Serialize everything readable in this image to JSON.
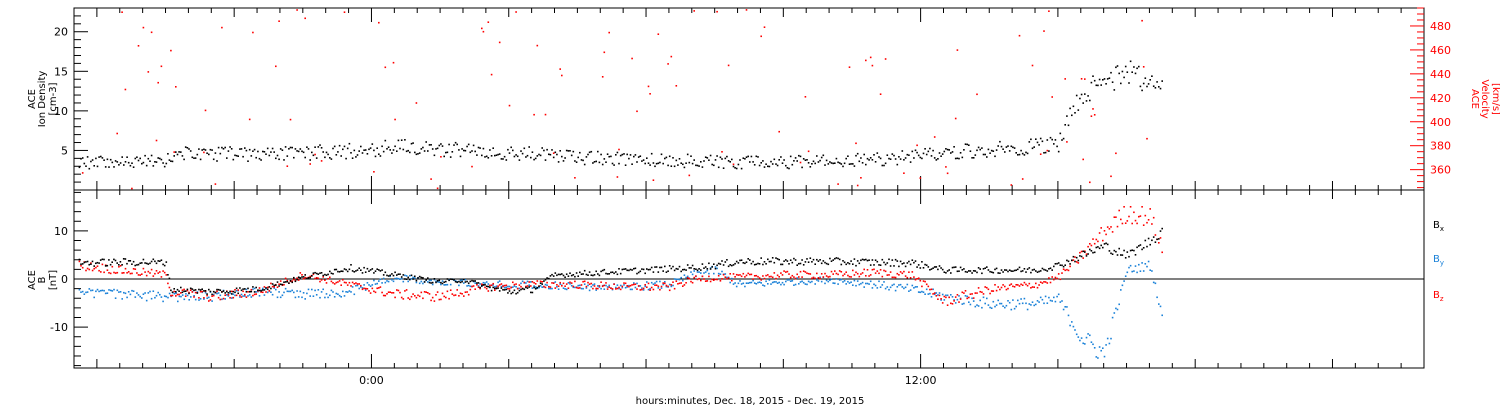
{
  "chart_data": [
    {
      "type": "scatter",
      "panel": "top",
      "ylabel_left": [
        "ACE",
        "Ion Density",
        "[cm-3]"
      ],
      "ylabel_right": [
        "ACE",
        "Velocity",
        "[km/s]"
      ],
      "left_ticks": [
        "5",
        "10",
        "15",
        "20"
      ],
      "right_ticks": [
        "360",
        "380",
        "400",
        "420",
        "440",
        "460",
        "480"
      ],
      "ylim_left": [
        0,
        23
      ],
      "ylim_right": [
        343,
        495
      ],
      "xlim_hours": [
        -6.5,
        23.0
      ],
      "x_ticks": [
        "0:00",
        "12:00"
      ],
      "series": [
        {
          "color": "#000000",
          "axis": "left",
          "points": [
            [
              -6.4,
              3.6
            ],
            [
              -5.5,
              3.5
            ],
            [
              -4.5,
              3.8
            ],
            [
              -4.4,
              4.6
            ],
            [
              -3.5,
              4.7
            ],
            [
              -2.5,
              4.5
            ],
            [
              -1.5,
              4.8
            ],
            [
              -0.5,
              5.0
            ],
            [
              0.5,
              5.5
            ],
            [
              1.5,
              5.3
            ],
            [
              2.5,
              5.0
            ],
            [
              3.5,
              4.6
            ],
            [
              4.5,
              4.2
            ],
            [
              5.5,
              4.0
            ],
            [
              6.5,
              3.9
            ],
            [
              7.0,
              3.7
            ],
            [
              7.5,
              3.6
            ],
            [
              8.0,
              3.6
            ],
            [
              9.0,
              3.6
            ],
            [
              10.0,
              3.7
            ],
            [
              11.0,
              3.9
            ],
            [
              11.8,
              4.4
            ],
            [
              12.5,
              4.8
            ],
            [
              13.5,
              5.2
            ],
            [
              14.5,
              5.6
            ],
            [
              15.0,
              6.0
            ],
            [
              15.5,
              12.5
            ],
            [
              16.0,
              13.5
            ],
            [
              16.5,
              15.0
            ],
            [
              17.0,
              14.0
            ],
            [
              17.3,
              13.0
            ]
          ]
        },
        {
          "color": "#ff0000",
          "axis": "right",
          "points": [
            [
              -6.4,
              400
            ],
            [
              -5.0,
              402
            ],
            [
              -4.5,
              400
            ],
            [
              -4.4,
              422
            ],
            [
              -3.5,
              424
            ],
            [
              -2.5,
              418
            ],
            [
              -2.0,
              412
            ],
            [
              -1.0,
              410
            ],
            [
              0.0,
              405
            ],
            [
              1.0,
              404
            ],
            [
              2.0,
              400
            ],
            [
              3.0,
              396
            ],
            [
              4.0,
              390
            ],
            [
              5.0,
              380
            ],
            [
              6.0,
              377
            ],
            [
              7.0,
              375
            ],
            [
              7.5,
              374
            ],
            [
              8.0,
              360
            ],
            [
              9.0,
              356
            ],
            [
              10.0,
              354
            ],
            [
              11.0,
              356
            ],
            [
              11.8,
              359
            ],
            [
              12.5,
              372
            ],
            [
              13.0,
              368
            ],
            [
              14.0,
              366
            ],
            [
              14.5,
              362
            ],
            [
              15.0,
              360
            ],
            [
              15.5,
              470
            ],
            [
              16.0,
              480
            ],
            [
              16.5,
              470
            ],
            [
              17.0,
              460
            ],
            [
              17.3,
              450
            ]
          ]
        }
      ]
    },
    {
      "type": "scatter",
      "panel": "bottom",
      "ylabel_left": [
        "ACE",
        "B",
        "[nT]"
      ],
      "left_ticks": [
        "-10",
        "0",
        "10"
      ],
      "ylim": [
        -18.5,
        18.5
      ],
      "xlim_hours": [
        -6.5,
        23.0
      ],
      "x_ticks": [
        "0:00",
        "12:00"
      ],
      "legend": [
        {
          "name": "B",
          "sub": "x",
          "color": "#000000"
        },
        {
          "name": "B",
          "sub": "y",
          "color": "#1b82d8"
        },
        {
          "name": "B",
          "sub": "z",
          "color": "#ff0000"
        }
      ],
      "series": [
        {
          "name": "Bx",
          "color": "#000000",
          "points": [
            [
              -6.4,
              3.5
            ],
            [
              -5.0,
              3.7
            ],
            [
              -4.5,
              3.5
            ],
            [
              -4.4,
              -2.0
            ],
            [
              -3.5,
              -2.5
            ],
            [
              -2.5,
              -2.0
            ],
            [
              -1.5,
              0.5
            ],
            [
              -0.5,
              2.5
            ],
            [
              0.5,
              1.0
            ],
            [
              1.5,
              -0.5
            ],
            [
              2.0,
              0.0
            ],
            [
              2.5,
              -1.5
            ],
            [
              3.0,
              -2.5
            ],
            [
              3.5,
              -2.0
            ],
            [
              4.0,
              1.0
            ],
            [
              5.0,
              1.5
            ],
            [
              6.0,
              2.0
            ],
            [
              7.0,
              2.5
            ],
            [
              7.5,
              3.0
            ],
            [
              8.0,
              3.8
            ],
            [
              9.0,
              3.8
            ],
            [
              10.0,
              3.8
            ],
            [
              11.0,
              3.6
            ],
            [
              11.8,
              3.5
            ],
            [
              12.5,
              2.0
            ],
            [
              13.5,
              2.0
            ],
            [
              14.5,
              2.0
            ],
            [
              15.0,
              3.0
            ],
            [
              15.5,
              5.0
            ],
            [
              16.0,
              7.0
            ],
            [
              16.5,
              5.0
            ],
            [
              17.0,
              8.0
            ],
            [
              17.3,
              10.5
            ]
          ]
        },
        {
          "name": "By",
          "color": "#1b82d8",
          "points": [
            [
              -6.4,
              -2.5
            ],
            [
              -5.5,
              -3.0
            ],
            [
              -4.5,
              -3.5
            ],
            [
              -3.5,
              -3.5
            ],
            [
              -2.5,
              -2.5
            ],
            [
              -1.5,
              -3.0
            ],
            [
              -0.5,
              -2.5
            ],
            [
              0.5,
              0.5
            ],
            [
              1.5,
              -0.5
            ],
            [
              2.5,
              -1.0
            ],
            [
              3.5,
              -1.0
            ],
            [
              4.5,
              -1.5
            ],
            [
              5.5,
              -1.5
            ],
            [
              6.5,
              -1.0
            ],
            [
              7.0,
              1.0
            ],
            [
              7.5,
              2.0
            ],
            [
              8.0,
              -1.0
            ],
            [
              9.0,
              -0.5
            ],
            [
              10.0,
              0.0
            ],
            [
              11.0,
              -1.0
            ],
            [
              11.8,
              -2.0
            ],
            [
              12.5,
              -3.5
            ],
            [
              13.5,
              -5.0
            ],
            [
              14.5,
              -5.0
            ],
            [
              15.0,
              -4.0
            ],
            [
              15.5,
              -12.0
            ],
            [
              16.0,
              -15.5
            ],
            [
              16.5,
              2.0
            ],
            [
              17.0,
              3.0
            ],
            [
              17.3,
              -8.5
            ]
          ]
        },
        {
          "name": "Bz",
          "color": "#ff0000",
          "points": [
            [
              -6.4,
              3.0
            ],
            [
              -5.5,
              2.0
            ],
            [
              -4.5,
              1.0
            ],
            [
              -4.4,
              -2.5
            ],
            [
              -3.5,
              -3.5
            ],
            [
              -2.5,
              -2.5
            ],
            [
              -1.5,
              1.0
            ],
            [
              -0.5,
              -1.0
            ],
            [
              0.5,
              -3.0
            ],
            [
              1.5,
              -3.5
            ],
            [
              2.5,
              -1.5
            ],
            [
              3.5,
              -1.0
            ],
            [
              4.5,
              -1.0
            ],
            [
              5.5,
              -1.5
            ],
            [
              6.5,
              -1.5
            ],
            [
              7.0,
              0.0
            ],
            [
              7.5,
              0.5
            ],
            [
              8.0,
              0.5
            ],
            [
              9.0,
              1.0
            ],
            [
              10.0,
              1.0
            ],
            [
              11.0,
              1.5
            ],
            [
              11.8,
              1.0
            ],
            [
              12.5,
              -4.5
            ],
            [
              13.5,
              -2.0
            ],
            [
              14.5,
              -1.0
            ],
            [
              15.0,
              0.5
            ],
            [
              15.5,
              5.0
            ],
            [
              16.0,
              10.0
            ],
            [
              16.5,
              14.0
            ],
            [
              17.0,
              13.0
            ],
            [
              17.3,
              6.0
            ]
          ]
        }
      ]
    }
  ],
  "xlabel": "hours:minutes, Dec. 18, 2015 - Dec. 19, 2015"
}
